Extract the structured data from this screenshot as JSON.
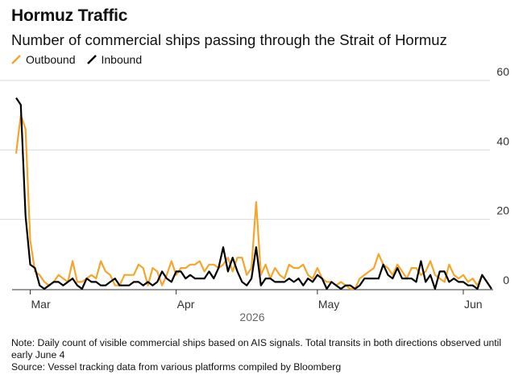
{
  "header": {
    "title": "Hormuz Traffic",
    "subtitle": "Number of commercial ships passing through the Strait of Hormuz"
  },
  "legend": {
    "outbound_label": "Outbound",
    "inbound_label": "Inbound"
  },
  "colors": {
    "outbound": "#f5a52c",
    "inbound": "#000000",
    "grid": "#d9d9d9",
    "axis": "#333333"
  },
  "footer": {
    "note": "Note: Daily count of visible commercial ships based on AIS signals. Total transits in both directions observed until early June 4",
    "source": "Source: Vessel tracking data from various platforms compiled by Bloomberg"
  },
  "chart_data": {
    "type": "line",
    "title": "Hormuz Traffic",
    "subtitle": "Number of commercial ships passing through the Strait of Hormuz",
    "xlabel": "2026",
    "ylabel": "",
    "ylim": [
      0,
      60
    ],
    "yticks": [
      0,
      20,
      40,
      60
    ],
    "xticks": [
      "Mar",
      "Apr",
      "May",
      "Jun"
    ],
    "legend": "top-left",
    "grid": true,
    "x_start": "2026-02-26",
    "series": [
      {
        "name": "Outbound",
        "values": [
          39,
          50,
          46,
          14,
          5,
          4,
          2,
          1,
          2,
          4,
          3,
          2,
          8,
          2,
          2,
          3,
          4,
          3,
          8,
          5,
          4,
          1,
          1,
          4,
          4,
          4,
          7,
          6,
          1,
          6,
          5,
          1,
          4,
          8,
          4,
          6,
          6,
          7,
          7,
          8,
          5,
          7,
          7,
          6,
          7,
          9,
          5,
          9,
          9,
          4,
          6,
          25,
          4,
          7,
          3,
          6,
          4,
          3,
          7,
          6,
          6,
          7,
          4,
          3,
          6,
          3,
          2,
          2,
          1,
          2,
          1,
          0,
          0,
          3,
          4,
          5,
          6,
          10,
          7,
          6,
          4,
          7,
          5,
          3,
          6,
          6,
          4,
          5,
          8,
          4,
          3,
          2,
          7,
          4,
          3,
          4,
          2,
          3,
          1,
          4,
          2,
          0
        ]
      },
      {
        "name": "Inbound",
        "values": [
          55,
          53,
          21,
          7,
          6,
          1,
          0,
          1,
          2,
          2,
          1,
          2,
          3,
          1,
          0,
          3,
          2,
          2,
          1,
          1,
          2,
          3,
          1,
          1,
          1,
          2,
          2,
          1,
          2,
          1,
          2,
          5,
          3,
          2,
          5,
          5,
          3,
          4,
          3,
          3,
          3,
          5,
          3,
          6,
          12,
          5,
          9,
          5,
          2,
          1,
          3,
          12,
          1,
          3,
          3,
          2,
          2,
          2,
          3,
          2,
          3,
          1,
          3,
          2,
          4,
          3,
          0,
          2,
          1,
          0,
          1,
          1,
          0,
          1,
          3,
          3,
          3,
          3,
          7,
          4,
          3,
          6,
          3,
          3,
          3,
          2,
          8,
          2,
          4,
          0,
          5,
          5,
          2,
          3,
          2,
          2,
          1,
          1,
          0,
          4,
          2,
          0
        ]
      }
    ]
  }
}
